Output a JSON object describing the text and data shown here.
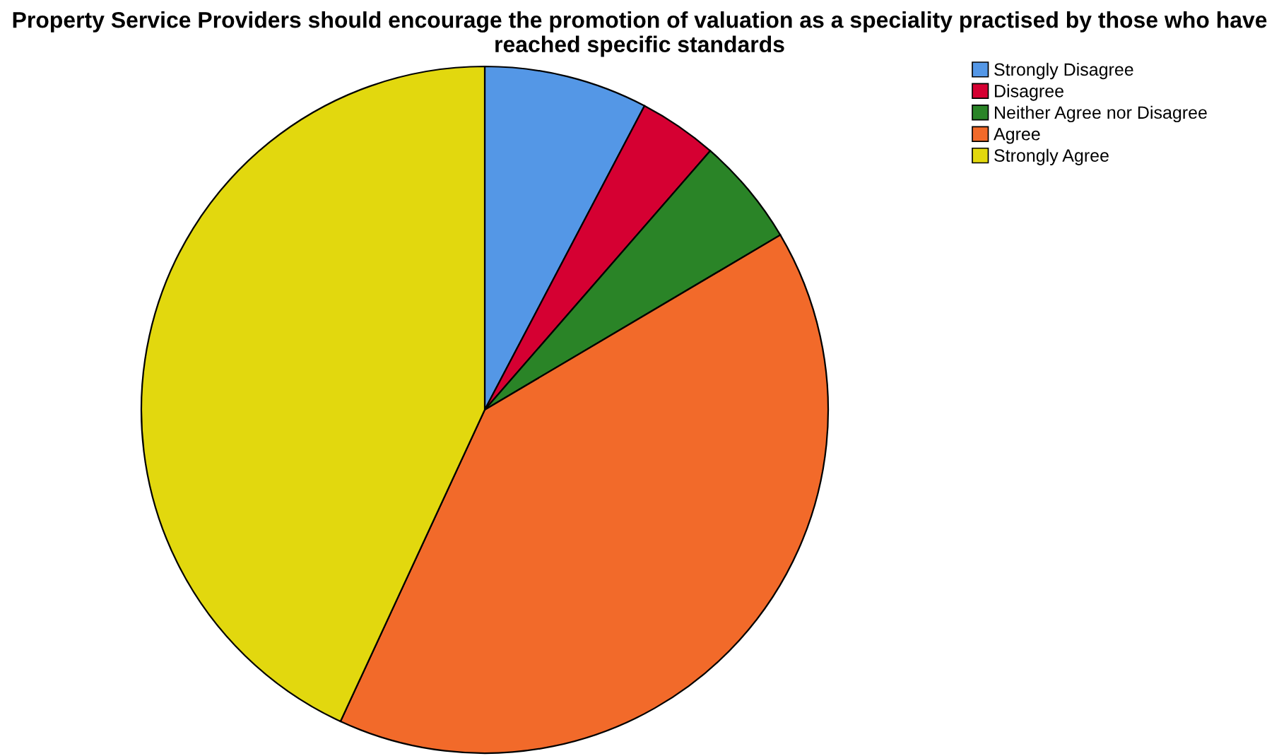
{
  "chart_data": {
    "type": "pie",
    "title": "Property Service Providers should encourage the promotion of valuation as a speciality practised by those who have reached specific standards",
    "categories": [
      "Strongly Disagree",
      "Disagree",
      "Neither Agree nor Disagree",
      "Agree",
      "Strongly Agree"
    ],
    "values": [
      7.7,
      3.7,
      5.1,
      40.4,
      43.1
    ],
    "colors": [
      "#5497e6",
      "#d50032",
      "#2a8427",
      "#f26a2a",
      "#e2d80e"
    ],
    "legend": "top right"
  }
}
